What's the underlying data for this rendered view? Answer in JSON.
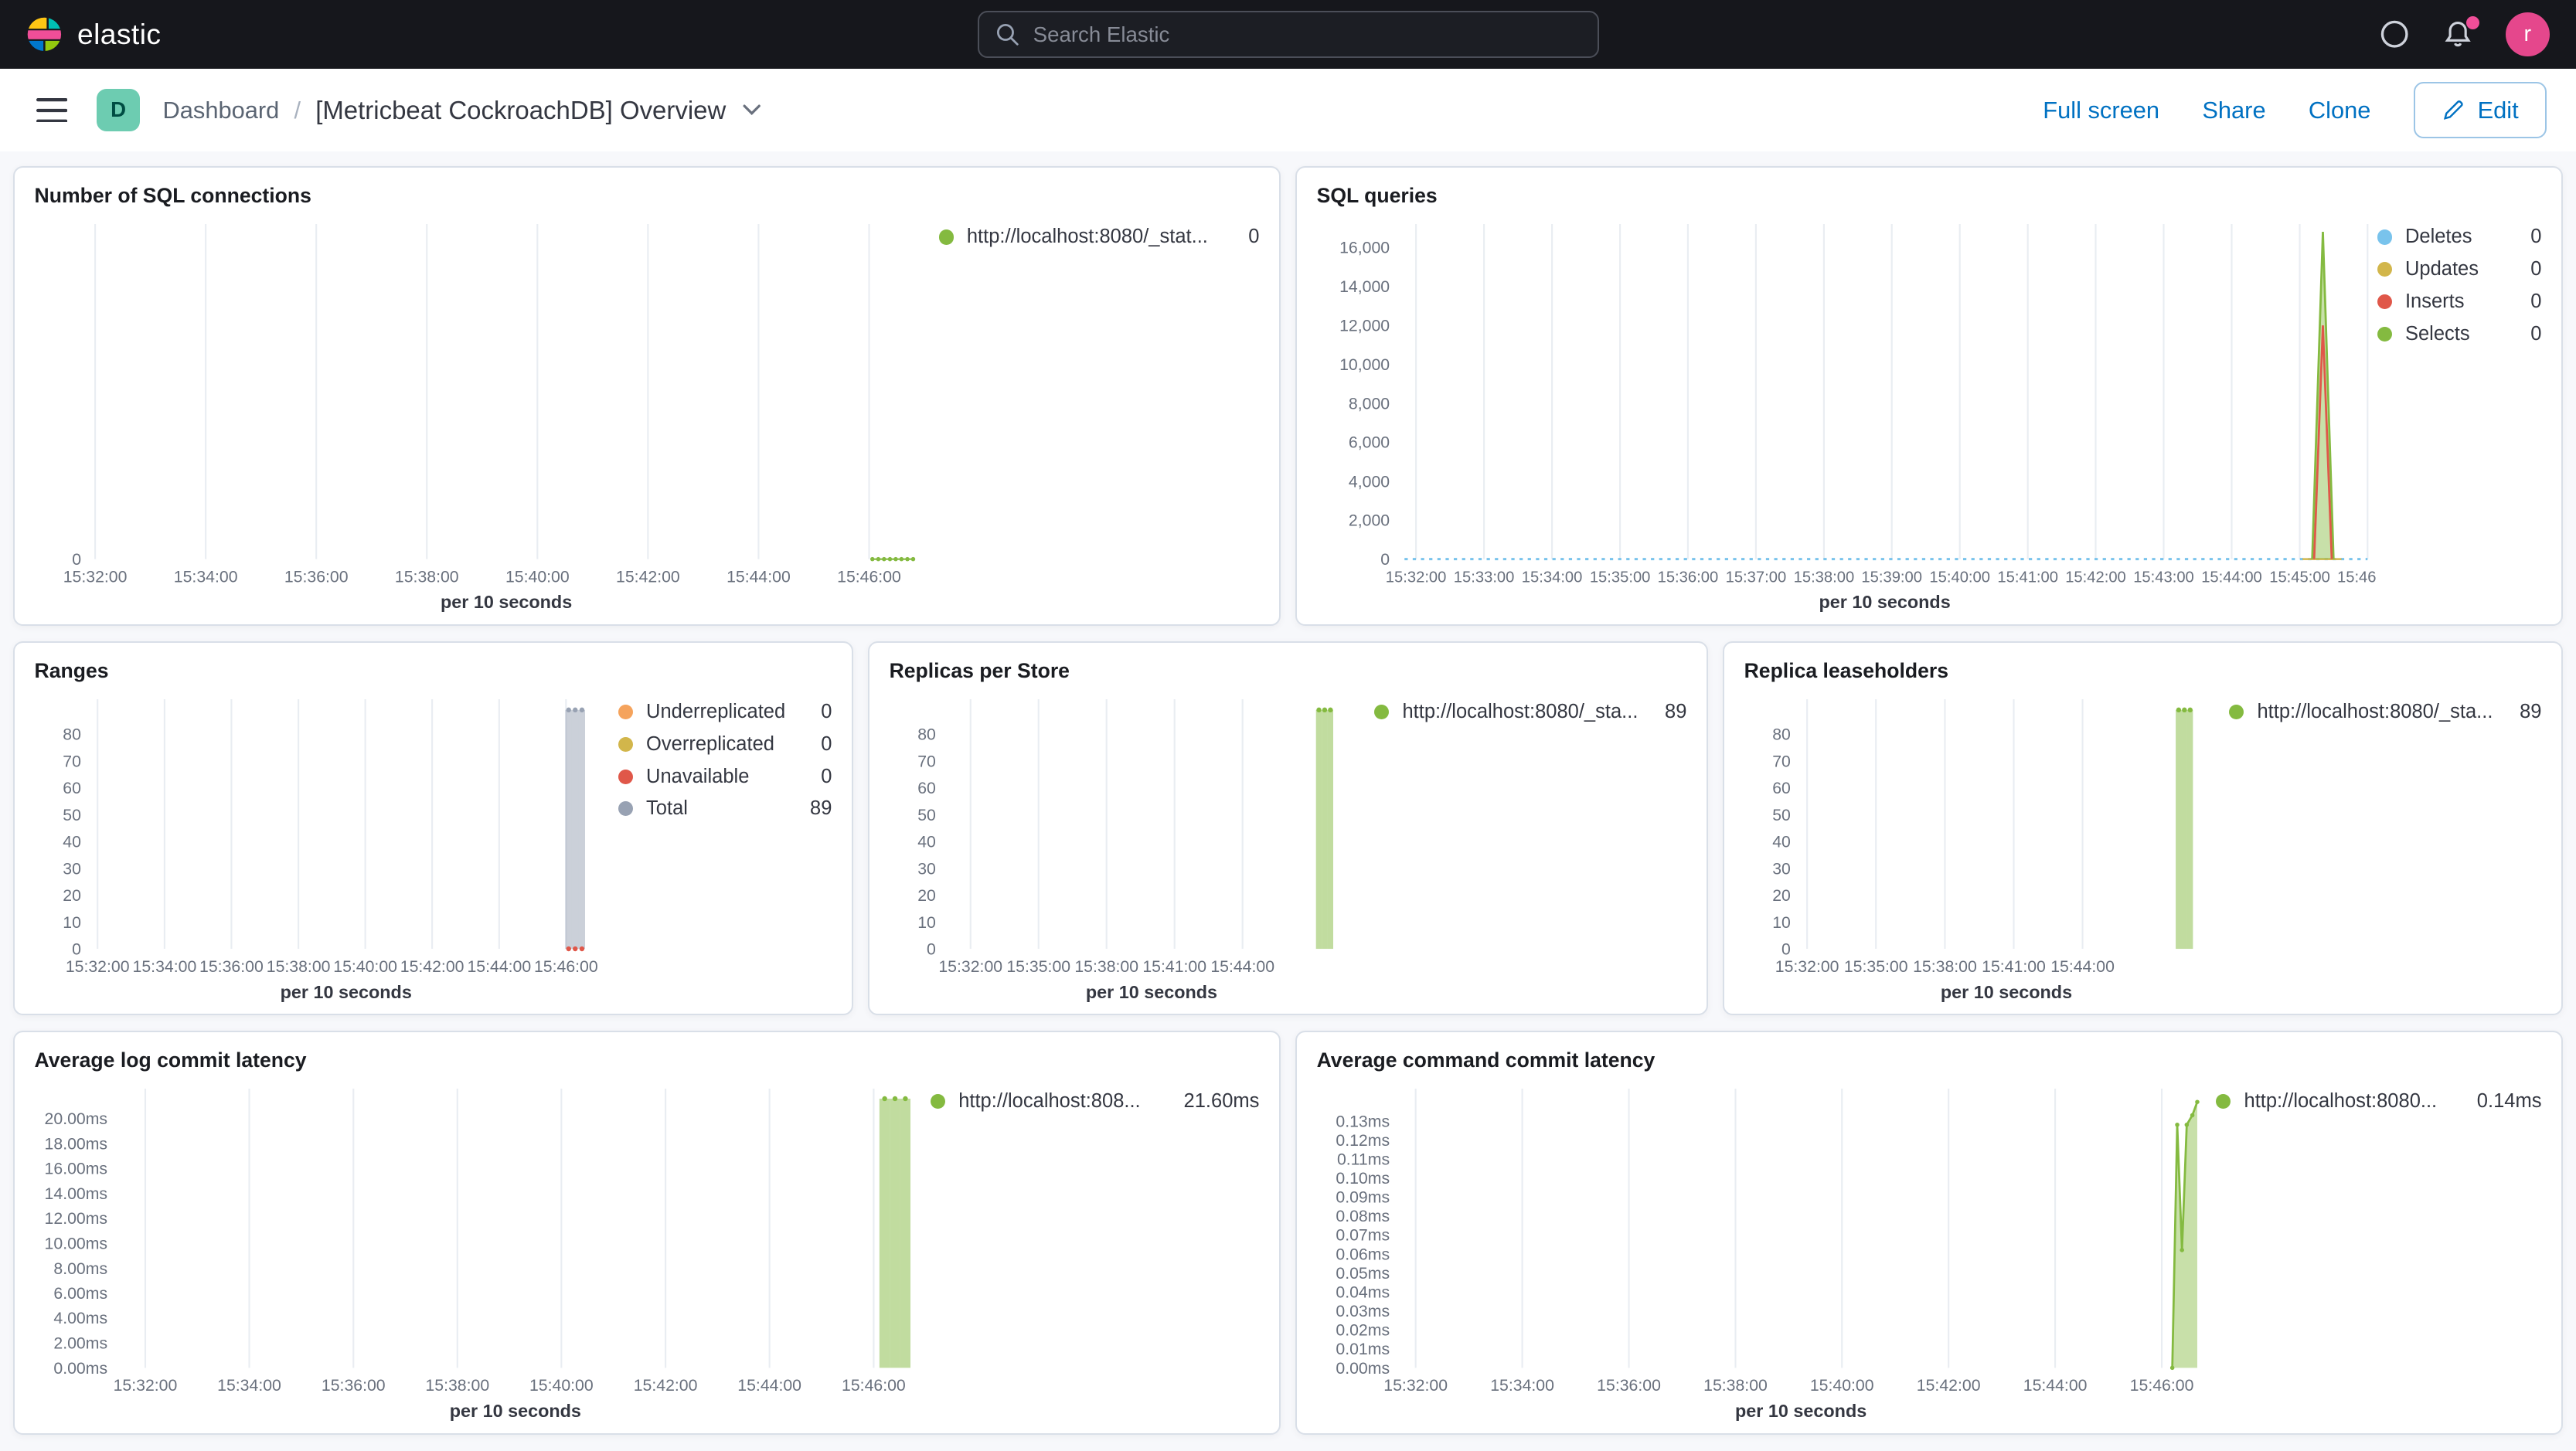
{
  "topbar": {
    "brand": "elastic",
    "search_placeholder": "Search Elastic",
    "avatar_initial": "r"
  },
  "toolbar": {
    "dashboard_badge": "D",
    "breadcrumb_root": "Dashboard",
    "breadcrumb_sep": "/",
    "title": "[Metricbeat CockroachDB] Overview",
    "actions": {
      "full_screen": "Full screen",
      "share": "Share",
      "clone": "Clone",
      "edit": "Edit"
    }
  },
  "colors": {
    "accent_blue": "#0071c2",
    "green": "#84ba40",
    "light_blue": "#79c3ec",
    "yellow": "#d2b64b",
    "red": "#e05749",
    "orange": "#f5a35c",
    "gray": "#98a2b3",
    "pink": "#f04e98"
  },
  "chart_data": [
    {
      "name": "sql_connections",
      "type": "line",
      "title": "Number of SQL connections",
      "xlabel": "per 10 seconds",
      "ylim": [
        0,
        100
      ],
      "ml": 34,
      "y_ticks": [
        [
          0,
          "0"
        ]
      ],
      "x_ticks": {
        "labels": [
          "15:32:00",
          "15:34:00",
          "15:36:00",
          "15:38:00",
          "15:40:00",
          "15:42:00",
          "15:44:00",
          "15:46:00"
        ],
        "x0": 0.005,
        "dx": 0.133
      },
      "series": [
        {
          "name": "http://localhost:8080/_stat...",
          "color": "#84ba40",
          "type": "line",
          "width": 1,
          "dots": true,
          "dot_r": 1.3,
          "points": [
            [
              0.94,
              0
            ],
            [
              0.947,
              0
            ],
            [
              0.954,
              0
            ],
            [
              0.961,
              0
            ],
            [
              0.968,
              0
            ],
            [
              0.975,
              0
            ],
            [
              0.982,
              0
            ],
            [
              0.989,
              0
            ]
          ]
        }
      ],
      "legend": [
        {
          "label": "http://localhost:8080/_stat...",
          "value": "0",
          "color": "#84ba40"
        }
      ]
    },
    {
      "name": "sql_queries",
      "type": "line",
      "title": "SQL queries",
      "xlabel": "per 10 seconds",
      "ylim": [
        0,
        17200
      ],
      "ml": 50,
      "mr": 4,
      "tick_fs": 9.5,
      "y_ticks": [
        [
          0,
          "0"
        ],
        [
          2000,
          "2,000"
        ],
        [
          4000,
          "4,000"
        ],
        [
          6000,
          "6,000"
        ],
        [
          8000,
          "8,000"
        ],
        [
          10000,
          "10,000"
        ],
        [
          12000,
          "12,000"
        ],
        [
          14000,
          "14,000"
        ],
        [
          16000,
          "16,000"
        ]
      ],
      "x_ticks": {
        "labels": [
          "15:32:00",
          "15:33:00",
          "15:34:00",
          "15:35:00",
          "15:36:00",
          "15:37:00",
          "15:38:00",
          "15:39:00",
          "15:40:00",
          "15:41:00",
          "15:42:00",
          "15:43:00",
          "15:44:00",
          "15:45:00",
          "15:46:00"
        ],
        "x0": 0.017,
        "dx": 0.07
      },
      "series": [
        {
          "name": "Deletes",
          "color": "#79c3ec",
          "type": "line",
          "width": 1.4,
          "dash": "2,3",
          "points": [
            [
              0.005,
              0
            ],
            [
              0.997,
              0
            ]
          ]
        },
        {
          "name": "Updates",
          "color": "#d2b64b",
          "type": "line",
          "width": 1.2,
          "points": [
            [
              0.93,
              0
            ],
            [
              0.97,
              0
            ]
          ]
        },
        {
          "name": "Selects",
          "color": "#84ba40",
          "type": "line",
          "width": 1.3,
          "fill": true,
          "points": [
            [
              0.94,
              0
            ],
            [
              0.951,
              16800
            ],
            [
              0.962,
              0
            ]
          ]
        },
        {
          "name": "Inserts",
          "color": "#e05749",
          "type": "line",
          "width": 1.3,
          "points": [
            [
              0.942,
              0
            ],
            [
              0.951,
              12000
            ],
            [
              0.96,
              0
            ]
          ]
        }
      ],
      "legend": [
        {
          "label": "Deletes",
          "value": "0",
          "color": "#79c3ec"
        },
        {
          "label": "Updates",
          "value": "0",
          "color": "#d2b64b"
        },
        {
          "label": "Inserts",
          "value": "0",
          "color": "#e05749"
        },
        {
          "label": "Selects",
          "value": "0",
          "color": "#84ba40"
        }
      ]
    },
    {
      "name": "ranges",
      "type": "bar",
      "title": "Ranges",
      "xlabel": "per 10 seconds",
      "ylim": [
        0,
        93
      ],
      "ml": 34,
      "y_ticks": [
        [
          0,
          "0"
        ],
        [
          10,
          "10"
        ],
        [
          20,
          "20"
        ],
        [
          30,
          "30"
        ],
        [
          40,
          "40"
        ],
        [
          50,
          "50"
        ],
        [
          60,
          "60"
        ],
        [
          70,
          "70"
        ],
        [
          80,
          "80"
        ]
      ],
      "x_ticks": {
        "labels": [
          "15:32:00",
          "15:34:00",
          "15:36:00",
          "15:38:00",
          "15:40:00",
          "15:42:00",
          "15:44:00",
          "15:46:00"
        ],
        "x0": 0.013,
        "dx": 0.131
      },
      "series": [
        {
          "name": "Total",
          "color": "#98a2b3",
          "type": "bar",
          "bw": 0.013,
          "dots": true,
          "dot_r": 1.5,
          "points": [
            [
              0.935,
              89
            ],
            [
              0.948,
              89
            ],
            [
              0.961,
              89
            ]
          ]
        },
        {
          "name": "Unavailable",
          "color": "#e05749",
          "type": "dots",
          "dot_r": 1.5,
          "points": [
            [
              0.935,
              0
            ],
            [
              0.948,
              0
            ],
            [
              0.961,
              0
            ]
          ]
        }
      ],
      "legend": [
        {
          "label": "Underreplicated",
          "value": "0",
          "color": "#f5a35c"
        },
        {
          "label": "Overreplicated",
          "value": "0",
          "color": "#d2b64b"
        },
        {
          "label": "Unavailable",
          "value": "0",
          "color": "#e05749"
        },
        {
          "label": "Total",
          "value": "89",
          "color": "#98a2b3"
        }
      ]
    },
    {
      "name": "replicas_per_store",
      "type": "bar",
      "title": "Replicas per Store",
      "xlabel": "per 10 seconds",
      "ylim": [
        0,
        93
      ],
      "ml": 34,
      "y_ticks": [
        [
          0,
          "0"
        ],
        [
          10,
          "10"
        ],
        [
          20,
          "20"
        ],
        [
          30,
          "30"
        ],
        [
          40,
          "40"
        ],
        [
          50,
          "50"
        ],
        [
          60,
          "60"
        ],
        [
          70,
          "70"
        ],
        [
          80,
          "80"
        ]
      ],
      "x_ticks": {
        "labels": [
          "15:32:00",
          "15:35:00",
          "15:38:00",
          "15:41:00",
          "15:44:00"
        ],
        "x0": 0.06,
        "dx": 0.165
      },
      "series": [
        {
          "name": "http://localhost:8080/_sta...",
          "color": "#84ba40",
          "type": "bar",
          "bw": 0.014,
          "dots": true,
          "dot_r": 1.5,
          "points": [
            [
              0.905,
              89
            ],
            [
              0.919,
              89
            ],
            [
              0.933,
              89
            ]
          ]
        }
      ],
      "legend": [
        {
          "label": "http://localhost:8080/_sta...",
          "value": "89",
          "color": "#84ba40"
        }
      ]
    },
    {
      "name": "replica_leaseholders",
      "type": "bar",
      "title": "Replica leaseholders",
      "xlabel": "per 10 seconds",
      "ylim": [
        0,
        93
      ],
      "ml": 34,
      "y_ticks": [
        [
          0,
          "0"
        ],
        [
          10,
          "10"
        ],
        [
          20,
          "20"
        ],
        [
          30,
          "30"
        ],
        [
          40,
          "40"
        ],
        [
          50,
          "50"
        ],
        [
          60,
          "60"
        ],
        [
          70,
          "70"
        ],
        [
          80,
          "80"
        ]
      ],
      "x_ticks": {
        "labels": [
          "15:32:00",
          "15:35:00",
          "15:38:00",
          "15:41:00",
          "15:44:00"
        ],
        "x0": 0.016,
        "dx": 0.167
      },
      "series": [
        {
          "name": "http://localhost:8080/_sta...",
          "color": "#84ba40",
          "type": "bar",
          "bw": 0.014,
          "dots": true,
          "dot_r": 1.5,
          "points": [
            [
              0.917,
              89
            ],
            [
              0.931,
              89
            ],
            [
              0.945,
              89
            ]
          ]
        }
      ],
      "legend": [
        {
          "label": "http://localhost:8080/_sta...",
          "value": "89",
          "color": "#84ba40"
        }
      ]
    },
    {
      "name": "avg_log_commit_latency",
      "type": "bar",
      "title": "Average log commit latency",
      "xlabel": "per 10 seconds",
      "ylim": [
        0,
        22.4
      ],
      "ml": 50,
      "y_ticks": [
        [
          0,
          "0.00ms"
        ],
        [
          2,
          "2.00ms"
        ],
        [
          4,
          "4.00ms"
        ],
        [
          6,
          "6.00ms"
        ],
        [
          8,
          "8.00ms"
        ],
        [
          10,
          "10.00ms"
        ],
        [
          12,
          "12.00ms"
        ],
        [
          14,
          "14.00ms"
        ],
        [
          16,
          "16.00ms"
        ],
        [
          18,
          "18.00ms"
        ],
        [
          20,
          "20.00ms"
        ]
      ],
      "x_ticks": {
        "labels": [
          "15:32:00",
          "15:34:00",
          "15:36:00",
          "15:38:00",
          "15:40:00",
          "15:42:00",
          "15:44:00",
          "15:46:00"
        ],
        "x0": 0.035,
        "dx": 0.1306
      },
      "series": [
        {
          "name": "http://localhost:808...",
          "color": "#84ba40",
          "type": "bar",
          "bw": 0.013,
          "dots": true,
          "dot_r": 1.5,
          "points": [
            [
              0.963,
              21.6
            ],
            [
              0.976,
              21.6
            ],
            [
              0.989,
              21.6
            ]
          ]
        }
      ],
      "legend": [
        {
          "label": "http://localhost:808...",
          "value": "21.60ms",
          "color": "#84ba40"
        }
      ]
    },
    {
      "name": "avg_command_commit_latency",
      "type": "area",
      "title": "Average command commit latency",
      "xlabel": "per 10 seconds",
      "ylim": [
        0,
        0.147
      ],
      "ml": 50,
      "mr": 8,
      "y_ticks": [
        [
          0,
          "0.00ms"
        ],
        [
          0.01,
          "0.01ms"
        ],
        [
          0.02,
          "0.02ms"
        ],
        [
          0.03,
          "0.03ms"
        ],
        [
          0.04,
          "0.04ms"
        ],
        [
          0.05,
          "0.05ms"
        ],
        [
          0.06,
          "0.06ms"
        ],
        [
          0.07,
          "0.07ms"
        ],
        [
          0.08,
          "0.08ms"
        ],
        [
          0.09,
          "0.09ms"
        ],
        [
          0.1,
          "0.10ms"
        ],
        [
          0.11,
          "0.11ms"
        ],
        [
          0.12,
          "0.12ms"
        ],
        [
          0.13,
          "0.13ms"
        ]
      ],
      "x_ticks": {
        "labels": [
          "15:32:00",
          "15:34:00",
          "15:36:00",
          "15:38:00",
          "15:40:00",
          "15:42:00",
          "15:44:00",
          "15:46:00"
        ],
        "x0": 0.02,
        "dx": 0.1327
      },
      "series": [
        {
          "name": "http://localhost:8080...",
          "color": "#84ba40",
          "type": "line",
          "width": 1.3,
          "fill": true,
          "dots": true,
          "dot_r": 1.3,
          "points": [
            [
              0.962,
              0
            ],
            [
              0.968,
              0.128
            ],
            [
              0.974,
              0.062
            ],
            [
              0.98,
              0.128
            ],
            [
              0.987,
              0.133
            ],
            [
              0.993,
              0.14
            ]
          ]
        }
      ],
      "legend": [
        {
          "label": "http://localhost:8080...",
          "value": "0.14ms",
          "color": "#84ba40"
        }
      ]
    }
  ]
}
